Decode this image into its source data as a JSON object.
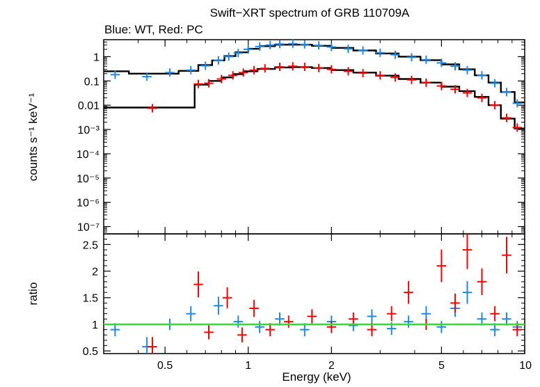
{
  "chart_data": [
    {
      "type": "scatter",
      "title": "Swift−XRT spectrum of GRB 110709A",
      "subtitle": "Blue: WT, Red: PC",
      "ylabel": "counts s⁻¹ keV⁻¹",
      "xscale": "log",
      "yscale": "log",
      "xlim": [
        0.3,
        10
      ],
      "ylim": [
        5e-08,
        5
      ],
      "xticks": [
        "0.5",
        "1",
        "2",
        "5",
        "10"
      ],
      "xtick_values": [
        0.5,
        1,
        2,
        5,
        10
      ],
      "yticks": [
        "1",
        "0.1",
        "0.01",
        "10⁻³",
        "10⁻⁴",
        "10⁻⁵",
        "10⁻⁶",
        "10⁻⁷"
      ],
      "ytick_values": [
        1,
        0.1,
        0.01,
        0.001,
        0.0001,
        1e-05,
        1e-06,
        1e-07
      ],
      "colors": {
        "wt": "#1e88e5",
        "pc": "#ff0000",
        "model": "#000000"
      },
      "series": [
        {
          "color": "#1e88e5",
          "points": [
            {
              "x": 0.33,
              "y": 0.18
            },
            {
              "x": 0.43,
              "y": 0.15
            },
            {
              "x": 0.52,
              "y": 0.22
            },
            {
              "x": 0.62,
              "y": 0.28
            },
            {
              "x": 0.7,
              "y": 0.42
            },
            {
              "x": 0.78,
              "y": 0.7
            },
            {
              "x": 0.85,
              "y": 1.0
            },
            {
              "x": 0.92,
              "y": 1.4
            },
            {
              "x": 1.0,
              "y": 2.0
            },
            {
              "x": 1.1,
              "y": 2.6
            },
            {
              "x": 1.2,
              "y": 3.0
            },
            {
              "x": 1.3,
              "y": 3.3
            },
            {
              "x": 1.45,
              "y": 3.4
            },
            {
              "x": 1.6,
              "y": 3.2
            },
            {
              "x": 1.8,
              "y": 2.9
            },
            {
              "x": 2.0,
              "y": 2.5
            },
            {
              "x": 2.3,
              "y": 2.1
            },
            {
              "x": 2.6,
              "y": 1.8
            },
            {
              "x": 3.0,
              "y": 1.45
            },
            {
              "x": 3.4,
              "y": 1.2
            },
            {
              "x": 3.9,
              "y": 0.95
            },
            {
              "x": 4.4,
              "y": 0.75
            },
            {
              "x": 5.0,
              "y": 0.55
            },
            {
              "x": 5.6,
              "y": 0.4
            },
            {
              "x": 6.2,
              "y": 0.28
            },
            {
              "x": 7.0,
              "y": 0.17
            },
            {
              "x": 7.8,
              "y": 0.08
            },
            {
              "x": 8.6,
              "y": 0.035
            },
            {
              "x": 9.4,
              "y": 0.012
            }
          ]
        },
        {
          "color": "#ff0000",
          "points": [
            {
              "x": 0.45,
              "y": 0.0075
            },
            {
              "x": 0.66,
              "y": 0.075
            },
            {
              "x": 0.72,
              "y": 0.08
            },
            {
              "x": 0.8,
              "y": 0.12
            },
            {
              "x": 0.88,
              "y": 0.17
            },
            {
              "x": 0.96,
              "y": 0.22
            },
            {
              "x": 1.05,
              "y": 0.28
            },
            {
              "x": 1.15,
              "y": 0.33
            },
            {
              "x": 1.3,
              "y": 0.38
            },
            {
              "x": 1.45,
              "y": 0.4
            },
            {
              "x": 1.6,
              "y": 0.38
            },
            {
              "x": 1.8,
              "y": 0.34
            },
            {
              "x": 2.0,
              "y": 0.3
            },
            {
              "x": 2.3,
              "y": 0.25
            },
            {
              "x": 2.6,
              "y": 0.21
            },
            {
              "x": 3.0,
              "y": 0.17
            },
            {
              "x": 3.4,
              "y": 0.14
            },
            {
              "x": 3.9,
              "y": 0.11
            },
            {
              "x": 4.4,
              "y": 0.085
            },
            {
              "x": 5.0,
              "y": 0.062
            },
            {
              "x": 5.6,
              "y": 0.045
            },
            {
              "x": 6.2,
              "y": 0.032
            },
            {
              "x": 7.0,
              "y": 0.02
            },
            {
              "x": 7.8,
              "y": 0.01
            },
            {
              "x": 8.6,
              "y": 0.003
            },
            {
              "x": 9.4,
              "y": 0.0012
            }
          ]
        }
      ],
      "models": [
        {
          "color": "#000000",
          "steps": [
            {
              "x0": 0.3,
              "x1": 0.37,
              "y": 0.25
            },
            {
              "x0": 0.37,
              "x1": 0.56,
              "y": 0.2
            },
            {
              "x0": 0.56,
              "x1": 0.66,
              "y": 0.26
            },
            {
              "x0": 0.66,
              "x1": 0.74,
              "y": 0.45
            },
            {
              "x0": 0.74,
              "x1": 0.82,
              "y": 0.7
            },
            {
              "x0": 0.82,
              "x1": 0.9,
              "y": 1.05
            },
            {
              "x0": 0.9,
              "x1": 1.0,
              "y": 1.5
            },
            {
              "x0": 1.0,
              "x1": 1.1,
              "y": 2.1
            },
            {
              "x0": 1.1,
              "x1": 1.25,
              "y": 2.7
            },
            {
              "x0": 1.25,
              "x1": 1.45,
              "y": 3.1
            },
            {
              "x0": 1.45,
              "x1": 1.7,
              "y": 3.1
            },
            {
              "x0": 1.7,
              "x1": 2.0,
              "y": 2.8
            },
            {
              "x0": 2.0,
              "x1": 2.4,
              "y": 2.3
            },
            {
              "x0": 2.4,
              "x1": 2.9,
              "y": 1.8
            },
            {
              "x0": 2.9,
              "x1": 3.5,
              "y": 1.35
            },
            {
              "x0": 3.5,
              "x1": 4.2,
              "y": 1.0
            },
            {
              "x0": 4.2,
              "x1": 5.0,
              "y": 0.72
            },
            {
              "x0": 5.0,
              "x1": 5.8,
              "y": 0.48
            },
            {
              "x0": 5.8,
              "x1": 6.6,
              "y": 0.3
            },
            {
              "x0": 6.6,
              "x1": 7.4,
              "y": 0.17
            },
            {
              "x0": 7.4,
              "x1": 8.2,
              "y": 0.085
            },
            {
              "x0": 8.2,
              "x1": 9.2,
              "y": 0.035
            },
            {
              "x0": 9.2,
              "x1": 10.0,
              "y": 0.013
            }
          ]
        },
        {
          "color": "#000000",
          "steps": [
            {
              "x0": 0.3,
              "x1": 0.64,
              "y": 0.008
            },
            {
              "x0": 0.64,
              "x1": 0.72,
              "y": 0.07
            },
            {
              "x0": 0.72,
              "x1": 0.8,
              "y": 0.1
            },
            {
              "x0": 0.8,
              "x1": 0.88,
              "y": 0.14
            },
            {
              "x0": 0.88,
              "x1": 0.96,
              "y": 0.19
            },
            {
              "x0": 0.96,
              "x1": 1.08,
              "y": 0.25
            },
            {
              "x0": 1.08,
              "x1": 1.25,
              "y": 0.31
            },
            {
              "x0": 1.25,
              "x1": 1.45,
              "y": 0.36
            },
            {
              "x0": 1.45,
              "x1": 1.7,
              "y": 0.37
            },
            {
              "x0": 1.7,
              "x1": 2.0,
              "y": 0.34
            },
            {
              "x0": 2.0,
              "x1": 2.4,
              "y": 0.28
            },
            {
              "x0": 2.4,
              "x1": 2.9,
              "y": 0.22
            },
            {
              "x0": 2.9,
              "x1": 3.5,
              "y": 0.165
            },
            {
              "x0": 3.5,
              "x1": 4.2,
              "y": 0.12
            },
            {
              "x0": 4.2,
              "x1": 5.0,
              "y": 0.085
            },
            {
              "x0": 5.0,
              "x1": 5.8,
              "y": 0.058
            },
            {
              "x0": 5.8,
              "x1": 6.6,
              "y": 0.038
            },
            {
              "x0": 6.6,
              "x1": 7.4,
              "y": 0.022
            },
            {
              "x0": 7.4,
              "x1": 8.2,
              "y": 0.01
            },
            {
              "x0": 8.2,
              "x1": 9.2,
              "y": 0.0028
            },
            {
              "x0": 9.2,
              "x1": 10.0,
              "y": 0.0011
            }
          ]
        }
      ]
    },
    {
      "type": "scatter",
      "xlabel": "Energy (keV)",
      "ylabel": "ratio",
      "xscale": "log",
      "xlim": [
        0.3,
        10
      ],
      "ylim": [
        0.45,
        2.7
      ],
      "xticks": [
        "0.5",
        "1",
        "2",
        "5",
        "10"
      ],
      "xtick_values": [
        0.5,
        1,
        2,
        5,
        10
      ],
      "yticks": [
        "0.5",
        "1",
        "1.5",
        "2",
        "2.5"
      ],
      "ytick_values": [
        0.5,
        1,
        1.5,
        2,
        2.5
      ],
      "reference_line": {
        "y": 1,
        "color": "#33dd33"
      },
      "series": [
        {
          "color": "#1e88e5",
          "points": [
            {
              "x": 0.33,
              "y": 0.9
            },
            {
              "x": 0.43,
              "y": 0.58
            },
            {
              "x": 0.52,
              "y": 1.0
            },
            {
              "x": 0.62,
              "y": 1.2
            },
            {
              "x": 0.78,
              "y": 1.35
            },
            {
              "x": 0.92,
              "y": 1.05
            },
            {
              "x": 1.1,
              "y": 0.95
            },
            {
              "x": 1.3,
              "y": 1.1
            },
            {
              "x": 1.6,
              "y": 0.9
            },
            {
              "x": 2.0,
              "y": 1.05
            },
            {
              "x": 2.4,
              "y": 0.98
            },
            {
              "x": 2.8,
              "y": 1.15
            },
            {
              "x": 3.3,
              "y": 0.92
            },
            {
              "x": 3.8,
              "y": 1.05
            },
            {
              "x": 4.4,
              "y": 1.2
            },
            {
              "x": 5.0,
              "y": 0.95
            },
            {
              "x": 5.6,
              "y": 1.3
            },
            {
              "x": 6.2,
              "y": 1.6
            },
            {
              "x": 7.0,
              "y": 1.1
            },
            {
              "x": 7.8,
              "y": 0.9
            },
            {
              "x": 8.6,
              "y": 1.1
            },
            {
              "x": 9.4,
              "y": 0.95
            }
          ]
        },
        {
          "color": "#ff0000",
          "points": [
            {
              "x": 0.45,
              "y": 0.58
            },
            {
              "x": 0.66,
              "y": 1.75
            },
            {
              "x": 0.72,
              "y": 0.85
            },
            {
              "x": 0.84,
              "y": 1.5
            },
            {
              "x": 0.95,
              "y": 0.8
            },
            {
              "x": 1.05,
              "y": 1.3
            },
            {
              "x": 1.2,
              "y": 0.9
            },
            {
              "x": 1.4,
              "y": 1.05
            },
            {
              "x": 1.7,
              "y": 1.15
            },
            {
              "x": 2.0,
              "y": 0.95
            },
            {
              "x": 2.4,
              "y": 1.1
            },
            {
              "x": 2.8,
              "y": 0.9
            },
            {
              "x": 3.3,
              "y": 1.2
            },
            {
              "x": 3.8,
              "y": 1.6
            },
            {
              "x": 4.4,
              "y": 1.0
            },
            {
              "x": 5.0,
              "y": 2.1
            },
            {
              "x": 5.6,
              "y": 1.4
            },
            {
              "x": 6.2,
              "y": 2.4
            },
            {
              "x": 7.0,
              "y": 1.8
            },
            {
              "x": 7.8,
              "y": 1.2
            },
            {
              "x": 8.6,
              "y": 2.3
            },
            {
              "x": 9.4,
              "y": 0.9
            }
          ]
        }
      ]
    }
  ]
}
